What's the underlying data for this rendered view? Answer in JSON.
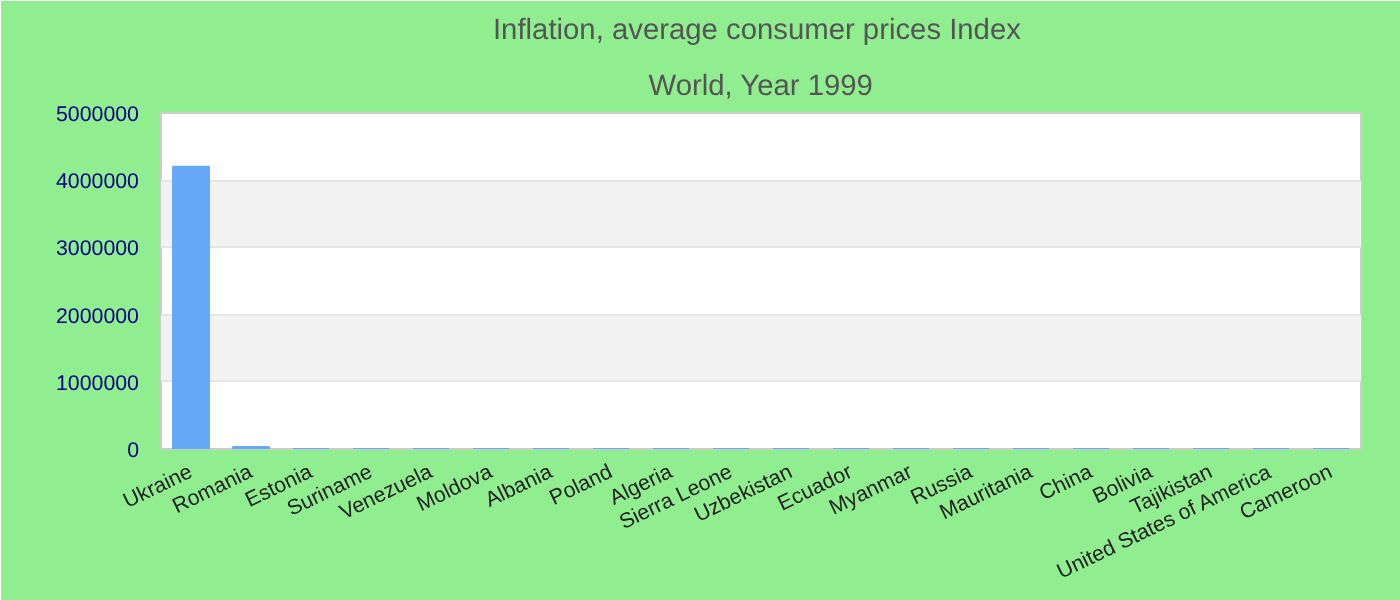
{
  "chart_data": {
    "type": "bar",
    "title": "Inflation, average consumer prices  Index",
    "subtitle": "World, Year 1999",
    "categories": [
      "Ukraine",
      "Romania",
      "Estonia",
      "Suriname",
      "Venezuela",
      "Moldova",
      "Albania",
      "Poland",
      "Algeria",
      "Sierra Leone",
      "Uzbekistan",
      "Ecuador",
      "Myanmar",
      "Russia",
      "Mauritania",
      "China",
      "Bolivia",
      "Tajikistan",
      "United States of America",
      "Cameroon"
    ],
    "values": [
      4200000,
      30000,
      0,
      0,
      0,
      0,
      0,
      0,
      0,
      0,
      0,
      0,
      0,
      0,
      0,
      0,
      0,
      0,
      0,
      0
    ],
    "color": "#66aaf7",
    "ylim": [
      0,
      5000000
    ],
    "yticks": [
      0,
      1000000,
      2000000,
      3000000,
      4000000,
      5000000
    ],
    "grid": "y"
  }
}
